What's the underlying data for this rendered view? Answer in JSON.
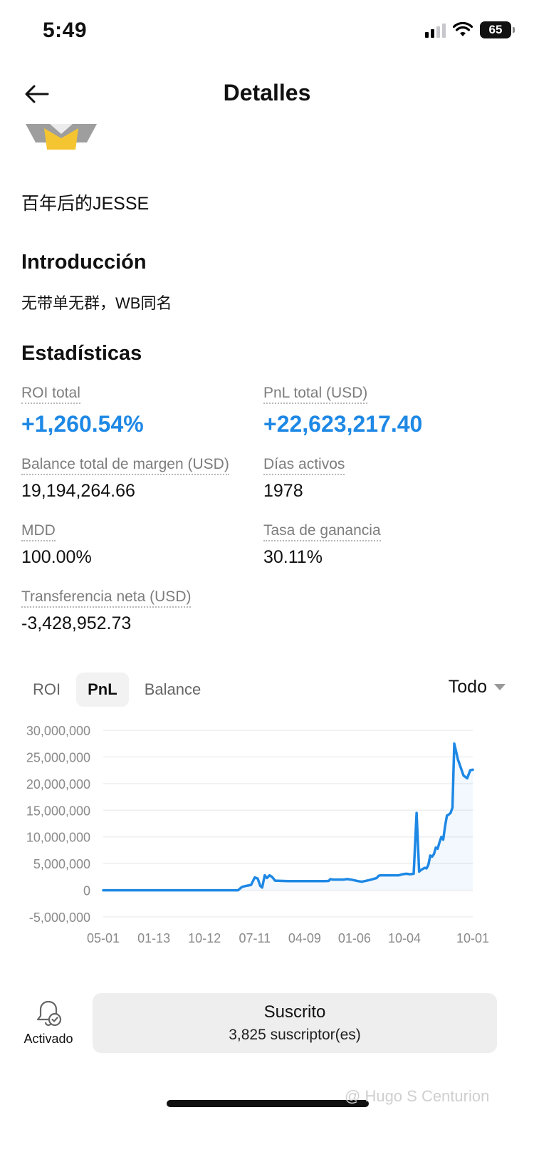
{
  "status_bar": {
    "time": "5:49",
    "battery": "65"
  },
  "header": {
    "title": "Detalles"
  },
  "trader": {
    "name": "百年后的JESSE"
  },
  "intro": {
    "title": "Introducción",
    "text": "无带单无群，WB同名"
  },
  "stats": {
    "title": "Estadísticas",
    "roi_label": "ROI total",
    "roi_value": "+1,260.54%",
    "pnl_label": "PnL total (USD)",
    "pnl_value": "+22,623,217.40",
    "margin_label": "Balance total de margen (USD)",
    "margin_value": "19,194,264.66",
    "days_label": "Días activos",
    "days_value": "1978",
    "mdd_label": "MDD",
    "mdd_value": "100.00%",
    "winrate_label": "Tasa de ganancia",
    "winrate_value": "30.11%",
    "transfer_label": "Transferencia neta (USD)",
    "transfer_value": "-3,428,952.73"
  },
  "chart_tabs": [
    {
      "label": "ROI"
    },
    {
      "label": "PnL"
    },
    {
      "label": "Balance"
    }
  ],
  "range": {
    "label": "Todo"
  },
  "chart_data": {
    "type": "area",
    "ylim": [
      -5000000,
      30000000
    ],
    "yticks": [
      30000000,
      25000000,
      20000000,
      15000000,
      10000000,
      5000000,
      0,
      -5000000
    ],
    "ytick_labels": [
      "30,000,000",
      "25,000,000",
      "20,000,000",
      "15,000,000",
      "10,000,000",
      "5,000,000",
      "0",
      "-5,000,000"
    ],
    "x_tick_labels": [
      "05-01",
      "01-13",
      "10-12",
      "07-11",
      "04-09",
      "01-06",
      "10-04",
      "10-01"
    ],
    "x_tick_positions": [
      0,
      0.137,
      0.274,
      0.41,
      0.545,
      0.68,
      0.815,
      1.0
    ],
    "series": [
      {
        "color": "#1e88e5",
        "x": [
          0,
          0.365,
          0.375,
          0.385,
          0.4,
          0.41,
          0.418,
          0.425,
          0.43,
          0.437,
          0.443,
          0.45,
          0.457,
          0.465,
          0.5,
          0.55,
          0.6,
          0.61,
          0.615,
          0.62,
          0.65,
          0.66,
          0.67,
          0.69,
          0.7,
          0.72,
          0.74,
          0.745,
          0.75,
          0.8,
          0.81,
          0.82,
          0.83,
          0.84,
          0.848,
          0.855,
          0.86,
          0.865,
          0.87,
          0.875,
          0.88,
          0.885,
          0.89,
          0.895,
          0.9,
          0.905,
          0.91,
          0.915,
          0.92,
          0.925,
          0.93,
          0.935,
          0.94,
          0.945,
          0.95,
          0.955,
          0.96,
          0.965,
          0.97,
          0.975,
          0.985,
          0.993,
          1.0
        ],
        "values": [
          0,
          0,
          600000,
          800000,
          1000000,
          2400000,
          2200000,
          800000,
          500000,
          2800000,
          2300000,
          2800000,
          2500000,
          1800000,
          1700000,
          1700000,
          1700000,
          1750000,
          2100000,
          2000000,
          2000000,
          2100000,
          2000000,
          1700000,
          1600000,
          1900000,
          2300000,
          2700000,
          2800000,
          2800000,
          3000000,
          3100000,
          3000000,
          3100000,
          14500000,
          3500000,
          3800000,
          4000000,
          4200000,
          4100000,
          4800000,
          6500000,
          6300000,
          6800000,
          8000000,
          7800000,
          9000000,
          10000000,
          9500000,
          12000000,
          14000000,
          14200000,
          14500000,
          15500000,
          27500000,
          26000000,
          24500000,
          23500000,
          22500000,
          21500000,
          21000000,
          22500000,
          22600000
        ]
      }
    ]
  },
  "bottom": {
    "bell_label": "Activado",
    "subscribe_title": "Suscrito",
    "subscribe_count": "3,825 suscriptor(es)"
  },
  "watermark": "@ Hugo S Centurion"
}
